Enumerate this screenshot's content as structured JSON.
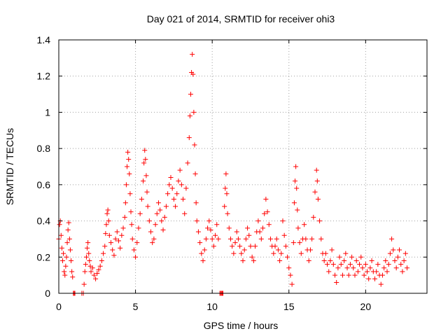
{
  "chart_data": {
    "type": "scatter",
    "title": "Day 021 of 2014, SRMTID for receiver ohi3",
    "xlabel": "GPS time / hours",
    "ylabel": "SRMTID / TECUs",
    "xlim": [
      0,
      24
    ],
    "ylim": [
      0,
      1.4
    ],
    "x_ticks": [
      0,
      5,
      10,
      15,
      20
    ],
    "y_ticks": [
      0,
      0.2,
      0.4,
      0.6,
      0.8,
      1,
      1.2,
      1.4
    ],
    "x_tick_labels": [
      "0",
      "5",
      "10",
      "15",
      "20"
    ],
    "y_tick_labels": [
      "0",
      "0.2",
      "0.4",
      "0.6",
      "0.8",
      "1",
      "1.2",
      "1.4"
    ],
    "grid": true,
    "marker": "+",
    "series": [
      {
        "name": "SRMTID",
        "color": "#ff0000",
        "points": [
          [
            0.0,
            0.3
          ],
          [
            0.05,
            0.38
          ],
          [
            0.1,
            0.4
          ],
          [
            0.15,
            0.32
          ],
          [
            0.2,
            0.25
          ],
          [
            0.25,
            0.18
          ],
          [
            0.3,
            0.22
          ],
          [
            0.35,
            0.12
          ],
          [
            0.4,
            0.1
          ],
          [
            0.45,
            0.15
          ],
          [
            0.5,
            0.2
          ],
          [
            0.55,
            0.28
          ],
          [
            0.6,
            0.35
          ],
          [
            0.65,
            0.39
          ],
          [
            0.7,
            0.3
          ],
          [
            0.75,
            0.24
          ],
          [
            0.8,
            0.18
          ],
          [
            0.85,
            0.12
          ],
          [
            0.9,
            0.09
          ],
          [
            0.95,
            0.0
          ],
          [
            1.0,
            0.0
          ],
          [
            1.05,
            0.0
          ],
          [
            1.5,
            0.0
          ],
          [
            1.6,
            0.0
          ],
          [
            1.65,
            0.05
          ],
          [
            1.7,
            0.12
          ],
          [
            1.75,
            0.16
          ],
          [
            1.8,
            0.2
          ],
          [
            1.85,
            0.25
          ],
          [
            1.9,
            0.28
          ],
          [
            1.95,
            0.22
          ],
          [
            2.0,
            0.18
          ],
          [
            2.05,
            0.15
          ],
          [
            2.1,
            0.12
          ],
          [
            2.2,
            0.14
          ],
          [
            2.3,
            0.1
          ],
          [
            2.4,
            0.08
          ],
          [
            2.5,
            0.11
          ],
          [
            2.6,
            0.13
          ],
          [
            2.7,
            0.15
          ],
          [
            2.8,
            0.18
          ],
          [
            2.9,
            0.22
          ],
          [
            3.0,
            0.26
          ],
          [
            3.05,
            0.33
          ],
          [
            3.1,
            0.38
          ],
          [
            3.15,
            0.44
          ],
          [
            3.2,
            0.46
          ],
          [
            3.25,
            0.4
          ],
          [
            3.3,
            0.32
          ],
          [
            3.4,
            0.28
          ],
          [
            3.5,
            0.24
          ],
          [
            3.6,
            0.21
          ],
          [
            3.7,
            0.3
          ],
          [
            3.8,
            0.34
          ],
          [
            3.9,
            0.29
          ],
          [
            4.0,
            0.25
          ],
          [
            4.1,
            0.32
          ],
          [
            4.2,
            0.36
          ],
          [
            4.3,
            0.42
          ],
          [
            4.35,
            0.5
          ],
          [
            4.4,
            0.6
          ],
          [
            4.45,
            0.7
          ],
          [
            4.5,
            0.78
          ],
          [
            4.55,
            0.74
          ],
          [
            4.6,
            0.66
          ],
          [
            4.65,
            0.55
          ],
          [
            4.7,
            0.45
          ],
          [
            4.75,
            0.38
          ],
          [
            4.8,
            0.3
          ],
          [
            4.9,
            0.24
          ],
          [
            5.0,
            0.2
          ],
          [
            5.1,
            0.28
          ],
          [
            5.2,
            0.36
          ],
          [
            5.3,
            0.44
          ],
          [
            5.4,
            0.52
          ],
          [
            5.5,
            0.62
          ],
          [
            5.55,
            0.72
          ],
          [
            5.6,
            0.79
          ],
          [
            5.65,
            0.74
          ],
          [
            5.7,
            0.65
          ],
          [
            5.75,
            0.56
          ],
          [
            5.8,
            0.48
          ],
          [
            5.9,
            0.4
          ],
          [
            6.0,
            0.34
          ],
          [
            6.1,
            0.28
          ],
          [
            6.2,
            0.3
          ],
          [
            6.3,
            0.38
          ],
          [
            6.4,
            0.44
          ],
          [
            6.5,
            0.5
          ],
          [
            6.6,
            0.46
          ],
          [
            6.7,
            0.4
          ],
          [
            6.8,
            0.35
          ],
          [
            6.9,
            0.42
          ],
          [
            7.0,
            0.48
          ],
          [
            7.1,
            0.55
          ],
          [
            7.2,
            0.6
          ],
          [
            7.3,
            0.64
          ],
          [
            7.4,
            0.58
          ],
          [
            7.5,
            0.52
          ],
          [
            7.6,
            0.48
          ],
          [
            7.7,
            0.55
          ],
          [
            7.8,
            0.62
          ],
          [
            7.9,
            0.68
          ],
          [
            8.0,
            0.6
          ],
          [
            8.1,
            0.52
          ],
          [
            8.2,
            0.44
          ],
          [
            8.3,
            0.58
          ],
          [
            8.4,
            0.72
          ],
          [
            8.5,
            0.86
          ],
          [
            8.55,
            0.98
          ],
          [
            8.6,
            1.1
          ],
          [
            8.65,
            1.22
          ],
          [
            8.7,
            1.32
          ],
          [
            8.75,
            1.21
          ],
          [
            8.8,
            1.0
          ],
          [
            8.85,
            0.82
          ],
          [
            8.9,
            0.66
          ],
          [
            8.95,
            0.5
          ],
          [
            9.0,
            0.4
          ],
          [
            9.1,
            0.34
          ],
          [
            9.2,
            0.28
          ],
          [
            9.3,
            0.22
          ],
          [
            9.4,
            0.18
          ],
          [
            9.5,
            0.24
          ],
          [
            9.6,
            0.3
          ],
          [
            9.7,
            0.36
          ],
          [
            9.8,
            0.4
          ],
          [
            9.9,
            0.35
          ],
          [
            10.0,
            0.3
          ],
          [
            10.1,
            0.26
          ],
          [
            10.2,
            0.32
          ],
          [
            10.3,
            0.38
          ],
          [
            10.4,
            0.3
          ],
          [
            10.5,
            0.0
          ],
          [
            10.55,
            0.0
          ],
          [
            10.6,
            0.0
          ],
          [
            10.65,
            0.0
          ],
          [
            10.7,
            0.0
          ],
          [
            10.8,
            0.48
          ],
          [
            10.85,
            0.58
          ],
          [
            10.9,
            0.66
          ],
          [
            10.95,
            0.55
          ],
          [
            11.0,
            0.44
          ],
          [
            11.1,
            0.36
          ],
          [
            11.2,
            0.3
          ],
          [
            11.3,
            0.26
          ],
          [
            11.4,
            0.22
          ],
          [
            11.5,
            0.28
          ],
          [
            11.6,
            0.34
          ],
          [
            11.7,
            0.3
          ],
          [
            11.8,
            0.26
          ],
          [
            11.9,
            0.22
          ],
          [
            12.0,
            0.18
          ],
          [
            12.1,
            0.24
          ],
          [
            12.2,
            0.3
          ],
          [
            12.3,
            0.36
          ],
          [
            12.4,
            0.32
          ],
          [
            12.5,
            0.26
          ],
          [
            12.6,
            0.2
          ],
          [
            12.7,
            0.18
          ],
          [
            12.8,
            0.26
          ],
          [
            12.9,
            0.34
          ],
          [
            13.0,
            0.4
          ],
          [
            13.1,
            0.34
          ],
          [
            13.2,
            0.3
          ],
          [
            13.3,
            0.36
          ],
          [
            13.4,
            0.44
          ],
          [
            13.5,
            0.52
          ],
          [
            13.6,
            0.45
          ],
          [
            13.7,
            0.38
          ],
          [
            13.8,
            0.3
          ],
          [
            13.9,
            0.26
          ],
          [
            14.0,
            0.22
          ],
          [
            14.1,
            0.26
          ],
          [
            14.2,
            0.3
          ],
          [
            14.3,
            0.24
          ],
          [
            14.4,
            0.18
          ],
          [
            14.5,
            0.22
          ],
          [
            14.6,
            0.4
          ],
          [
            14.7,
            0.32
          ],
          [
            14.8,
            0.26
          ],
          [
            14.9,
            0.2
          ],
          [
            15.0,
            0.14
          ],
          [
            15.1,
            0.1
          ],
          [
            15.2,
            0.05
          ],
          [
            15.3,
            0.28
          ],
          [
            15.35,
            0.5
          ],
          [
            15.4,
            0.62
          ],
          [
            15.45,
            0.7
          ],
          [
            15.5,
            0.58
          ],
          [
            15.55,
            0.46
          ],
          [
            15.6,
            0.36
          ],
          [
            15.7,
            0.28
          ],
          [
            15.8,
            0.22
          ],
          [
            15.9,
            0.3
          ],
          [
            16.0,
            0.38
          ],
          [
            16.1,
            0.3
          ],
          [
            16.2,
            0.24
          ],
          [
            16.3,
            0.18
          ],
          [
            16.4,
            0.24
          ],
          [
            16.5,
            0.3
          ],
          [
            16.6,
            0.42
          ],
          [
            16.7,
            0.56
          ],
          [
            16.8,
            0.68
          ],
          [
            16.85,
            0.62
          ],
          [
            16.9,
            0.52
          ],
          [
            17.0,
            0.4
          ],
          [
            17.1,
            0.3
          ],
          [
            17.2,
            0.22
          ],
          [
            17.3,
            0.18
          ],
          [
            17.4,
            0.22
          ],
          [
            17.5,
            0.16
          ],
          [
            17.6,
            0.12
          ],
          [
            17.7,
            0.18
          ],
          [
            17.8,
            0.24
          ],
          [
            17.9,
            0.16
          ],
          [
            18.0,
            0.1
          ],
          [
            18.1,
            0.06
          ],
          [
            18.2,
            0.14
          ],
          [
            18.3,
            0.2
          ],
          [
            18.4,
            0.16
          ],
          [
            18.5,
            0.1
          ],
          [
            18.6,
            0.18
          ],
          [
            18.7,
            0.22
          ],
          [
            18.8,
            0.14
          ],
          [
            18.9,
            0.1
          ],
          [
            19.0,
            0.16
          ],
          [
            19.1,
            0.2
          ],
          [
            19.2,
            0.14
          ],
          [
            19.3,
            0.1
          ],
          [
            19.4,
            0.18
          ],
          [
            19.5,
            0.12
          ],
          [
            19.6,
            0.16
          ],
          [
            19.7,
            0.2
          ],
          [
            19.8,
            0.14
          ],
          [
            19.9,
            0.1
          ],
          [
            20.0,
            0.16
          ],
          [
            20.1,
            0.12
          ],
          [
            20.2,
            0.08
          ],
          [
            20.3,
            0.14
          ],
          [
            20.4,
            0.18
          ],
          [
            20.5,
            0.12
          ],
          [
            20.6,
            0.08
          ],
          [
            20.7,
            0.12
          ],
          [
            20.8,
            0.16
          ],
          [
            20.9,
            0.1
          ],
          [
            21.0,
            0.05
          ],
          [
            21.1,
            0.1
          ],
          [
            21.2,
            0.14
          ],
          [
            21.3,
            0.18
          ],
          [
            21.4,
            0.12
          ],
          [
            21.5,
            0.16
          ],
          [
            21.6,
            0.22
          ],
          [
            21.7,
            0.3
          ],
          [
            21.8,
            0.24
          ],
          [
            21.9,
            0.18
          ],
          [
            22.0,
            0.14
          ],
          [
            22.1,
            0.2
          ],
          [
            22.2,
            0.24
          ],
          [
            22.3,
            0.16
          ],
          [
            22.4,
            0.12
          ],
          [
            22.5,
            0.18
          ],
          [
            22.6,
            0.22
          ],
          [
            22.7,
            0.14
          ]
        ]
      }
    ]
  }
}
